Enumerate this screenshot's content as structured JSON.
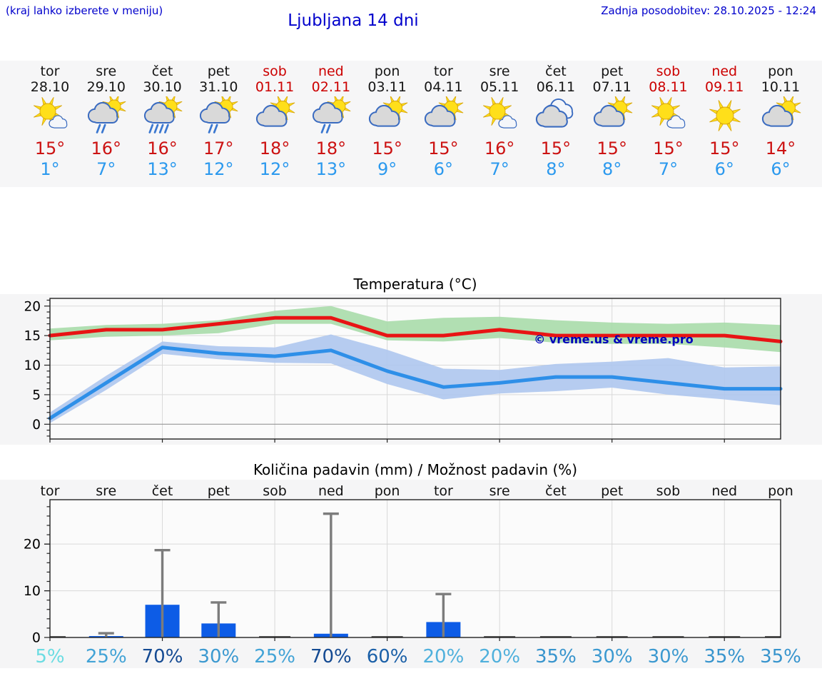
{
  "header": {
    "hint": "(kraj lahko izberete v meniju)",
    "title": "Ljubljana 14 dni",
    "updated": "Zadnja posodobitev: 28.10.2025 - 12:24"
  },
  "forecast": {
    "days": [
      {
        "day": "tor",
        "date": "28.10",
        "weekend": false,
        "icon": "sun-small-cloud",
        "high": "15°",
        "low": "1°"
      },
      {
        "day": "sre",
        "date": "29.10",
        "weekend": false,
        "icon": "cloud-sun-rain-2",
        "high": "16°",
        "low": "7°"
      },
      {
        "day": "čet",
        "date": "30.10",
        "weekend": false,
        "icon": "cloud-sun-rain-4",
        "high": "16°",
        "low": "13°"
      },
      {
        "day": "pet",
        "date": "31.10",
        "weekend": false,
        "icon": "cloud-sun-rain-2",
        "high": "17°",
        "low": "12°"
      },
      {
        "day": "sob",
        "date": "01.11",
        "weekend": true,
        "icon": "cloud-sun",
        "high": "18°",
        "low": "12°"
      },
      {
        "day": "ned",
        "date": "02.11",
        "weekend": true,
        "icon": "cloud-sun-rain-2",
        "high": "18°",
        "low": "13°"
      },
      {
        "day": "pon",
        "date": "03.11",
        "weekend": false,
        "icon": "cloud-sun",
        "high": "15°",
        "low": "9°"
      },
      {
        "day": "tor",
        "date": "04.11",
        "weekend": false,
        "icon": "cloud-sun",
        "high": "15°",
        "low": "6°"
      },
      {
        "day": "sre",
        "date": "05.11",
        "weekend": false,
        "icon": "sun-small-cloud",
        "high": "16°",
        "low": "7°"
      },
      {
        "day": "čet",
        "date": "06.11",
        "weekend": false,
        "icon": "cloudy",
        "high": "15°",
        "low": "8°"
      },
      {
        "day": "pet",
        "date": "07.11",
        "weekend": false,
        "icon": "cloud-sun",
        "high": "15°",
        "low": "8°"
      },
      {
        "day": "sob",
        "date": "08.11",
        "weekend": true,
        "icon": "sun-small-cloud",
        "high": "15°",
        "low": "7°"
      },
      {
        "day": "ned",
        "date": "09.11",
        "weekend": true,
        "icon": "sun",
        "high": "15°",
        "low": "6°"
      },
      {
        "day": "pon",
        "date": "10.11",
        "weekend": false,
        "icon": "cloud-sun",
        "high": "14°",
        "low": "6°"
      }
    ]
  },
  "chart_data": [
    {
      "type": "line",
      "title": "Temperatura (°C)",
      "watermark": "© vreme.us & vreme.pro",
      "categories": [
        "tor",
        "sre",
        "čet",
        "pet",
        "sob",
        "ned",
        "pon",
        "tor",
        "sre",
        "čet",
        "pet",
        "sob",
        "ned",
        "pon"
      ],
      "ylim": [
        -2.5,
        21.3
      ],
      "yticks": [
        0,
        5,
        10,
        15,
        20
      ],
      "grid_day_indices": [
        2,
        4,
        6,
        8,
        10,
        12
      ],
      "legend": "none",
      "series": [
        {
          "name": "max-temp",
          "color": "#e81414",
          "band_color": "#a9dcaa",
          "values": [
            15,
            16,
            16,
            17,
            18,
            18,
            15,
            15,
            16,
            15,
            15,
            15,
            15,
            14
          ],
          "band_hi": [
            16.2,
            16.8,
            17,
            17.6,
            19.2,
            20,
            17.4,
            18,
            18.2,
            17.6,
            17.2,
            17,
            17.2,
            16.8
          ],
          "band_lo": [
            14.2,
            14.8,
            15,
            15.4,
            17,
            17,
            14.2,
            14,
            14.6,
            13.8,
            13.6,
            13.6,
            13,
            12.2
          ]
        },
        {
          "name": "min-temp",
          "color": "#2e8fe8",
          "band_color": "#aec6ee",
          "values": [
            1,
            7,
            13,
            12,
            11.5,
            12.5,
            9,
            6.3,
            7,
            8,
            8,
            7,
            6,
            6
          ],
          "band_hi": [
            2,
            8.2,
            14,
            13.2,
            13,
            15.2,
            12.6,
            9.4,
            9.2,
            10.2,
            10.6,
            11.2,
            9.6,
            9.8
          ],
          "band_lo": [
            0.2,
            5.8,
            11.9,
            11,
            10.4,
            10.3,
            6.8,
            4.2,
            5.2,
            5.6,
            6.2,
            5,
            4.2,
            3.2
          ]
        }
      ]
    },
    {
      "type": "bar",
      "title": "Količina padavin (mm) / Možnost padavin (%)",
      "categories": [
        "tor",
        "sre",
        "čet",
        "pet",
        "sob",
        "ned",
        "pon",
        "tor",
        "sre",
        "čet",
        "pet",
        "sob",
        "ned",
        "pon"
      ],
      "ylim": [
        0,
        29.5
      ],
      "yticks": [
        0,
        10,
        20
      ],
      "grid_day_indices": [
        2,
        4,
        6,
        8,
        10,
        12
      ],
      "bar_color": "#0d5ce6",
      "whisker_color": "#7c7c7c",
      "values": [
        0,
        0.3,
        7,
        3,
        0,
        0.8,
        0,
        3.3,
        0,
        0,
        0,
        0,
        0,
        0
      ],
      "whisker_max": [
        0,
        0.9,
        18.7,
        7.5,
        0,
        26.5,
        0,
        9.3,
        0,
        0,
        0,
        0,
        0,
        0
      ],
      "probabilities": [
        {
          "label": "5%",
          "color": "#6bdce2"
        },
        {
          "label": "25%",
          "color": "#42a3d6"
        },
        {
          "label": "70%",
          "color": "#144a92"
        },
        {
          "label": "30%",
          "color": "#3b99d0"
        },
        {
          "label": "25%",
          "color": "#42a3d6"
        },
        {
          "label": "70%",
          "color": "#144a92"
        },
        {
          "label": "60%",
          "color": "#1b60a8"
        },
        {
          "label": "20%",
          "color": "#4fb0dc"
        },
        {
          "label": "20%",
          "color": "#4fb0dc"
        },
        {
          "label": "35%",
          "color": "#3794cd"
        },
        {
          "label": "30%",
          "color": "#3b99d0"
        },
        {
          "label": "30%",
          "color": "#3b99d0"
        },
        {
          "label": "35%",
          "color": "#3794cd"
        },
        {
          "label": "35%",
          "color": "#3794cd"
        }
      ]
    }
  ]
}
